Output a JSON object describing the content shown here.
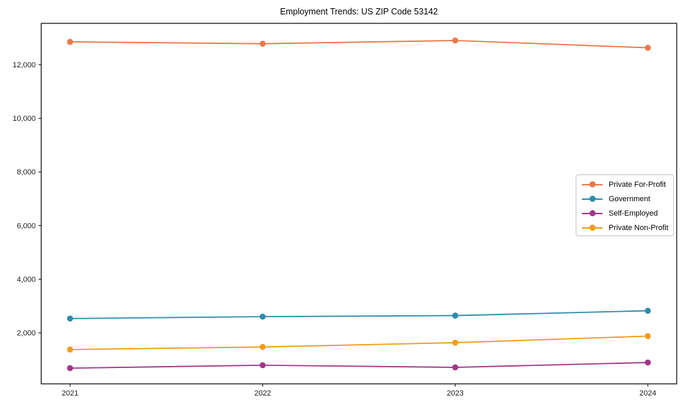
{
  "title": "Employment Trends: US ZIP Code 53142",
  "chart_data": {
    "type": "line",
    "title": "Employment Trends: US ZIP Code 53142",
    "xlabel": "",
    "ylabel": "",
    "categories": [
      "2021",
      "2022",
      "2023",
      "2024"
    ],
    "series": [
      {
        "name": "Private For-Profit",
        "color": "#e8794a",
        "values": [
          12850,
          12780,
          12900,
          12630
        ]
      },
      {
        "name": "Government",
        "color": "#2e8bab",
        "values": [
          2535,
          2605,
          2645,
          2825
        ]
      },
      {
        "name": "Self-Employed",
        "color": "#a23689",
        "values": [
          685,
          795,
          715,
          895
        ]
      },
      {
        "name": "Private Non-Profit",
        "color": "#f09c17",
        "values": [
          1380,
          1475,
          1635,
          1880
        ]
      }
    ],
    "ylim": [
      100,
      13540
    ],
    "yticks": [
      {
        "value": 2000,
        "label": "2,000"
      },
      {
        "value": 4000,
        "label": "4,000"
      },
      {
        "value": 6000,
        "label": "6,000"
      },
      {
        "value": 8000,
        "label": "8,000"
      },
      {
        "value": 10000,
        "label": "10,000"
      },
      {
        "value": 12000,
        "label": "12,000"
      }
    ],
    "grid": false,
    "legend_position": "center-right",
    "axis_color": "#000000"
  }
}
